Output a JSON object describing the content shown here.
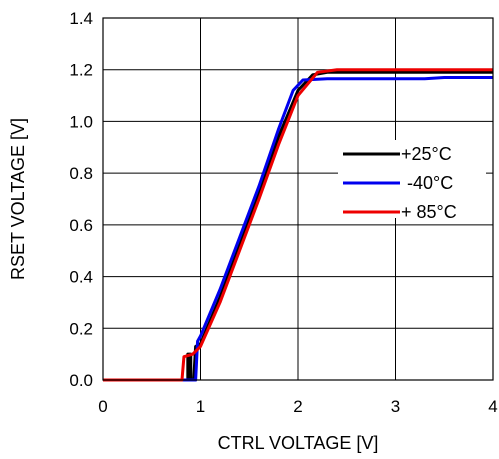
{
  "chart_data": {
    "type": "line",
    "xlabel": "CTRL VOLTAGE [V]",
    "ylabel": "RSET VOLTAGE [V]",
    "xlim": [
      0,
      4
    ],
    "ylim": [
      0,
      1.4
    ],
    "x_ticks": [
      "0",
      "1",
      "2",
      "3",
      "4"
    ],
    "y_ticks": [
      "0.0",
      "0.2",
      "0.4",
      "0.6",
      "0.8",
      "1.0",
      "1.2",
      "1.4"
    ],
    "grid": true,
    "legend_position": "right",
    "series": [
      {
        "name": "+25°C",
        "color": "#000000",
        "points": [
          [
            0,
            0
          ],
          [
            0.87,
            0
          ],
          [
            0.87,
            0.1
          ],
          [
            0.9,
            0.1
          ],
          [
            0.9,
            0
          ],
          [
            0.93,
            0
          ],
          [
            0.95,
            0.13
          ],
          [
            1.0,
            0.14
          ],
          [
            1.2,
            0.32
          ],
          [
            1.4,
            0.52
          ],
          [
            1.6,
            0.72
          ],
          [
            1.8,
            0.94
          ],
          [
            2.0,
            1.12
          ],
          [
            2.15,
            1.18
          ],
          [
            2.3,
            1.19
          ],
          [
            4.0,
            1.19
          ]
        ]
      },
      {
        "name": "-40°C",
        "color": "#0000ee",
        "points": [
          [
            0,
            0
          ],
          [
            0.88,
            0
          ],
          [
            0.9,
            0
          ],
          [
            0.95,
            0
          ],
          [
            0.97,
            0.15
          ],
          [
            1.0,
            0.17
          ],
          [
            1.2,
            0.35
          ],
          [
            1.4,
            0.55
          ],
          [
            1.6,
            0.75
          ],
          [
            1.8,
            0.97
          ],
          [
            1.95,
            1.12
          ],
          [
            2.05,
            1.16
          ],
          [
            2.3,
            1.165
          ],
          [
            3.3,
            1.165
          ],
          [
            3.5,
            1.17
          ],
          [
            4.0,
            1.17
          ]
        ]
      },
      {
        "name": "+ 85°C",
        "color": "#ee0000",
        "points": [
          [
            0,
            0
          ],
          [
            0.81,
            0
          ],
          [
            0.83,
            0.09
          ],
          [
            0.92,
            0.1
          ],
          [
            1.0,
            0.13
          ],
          [
            1.2,
            0.3
          ],
          [
            1.4,
            0.5
          ],
          [
            1.6,
            0.7
          ],
          [
            1.8,
            0.91
          ],
          [
            2.0,
            1.1
          ],
          [
            2.2,
            1.19
          ],
          [
            2.4,
            1.2
          ],
          [
            4.0,
            1.2
          ]
        ]
      }
    ]
  }
}
